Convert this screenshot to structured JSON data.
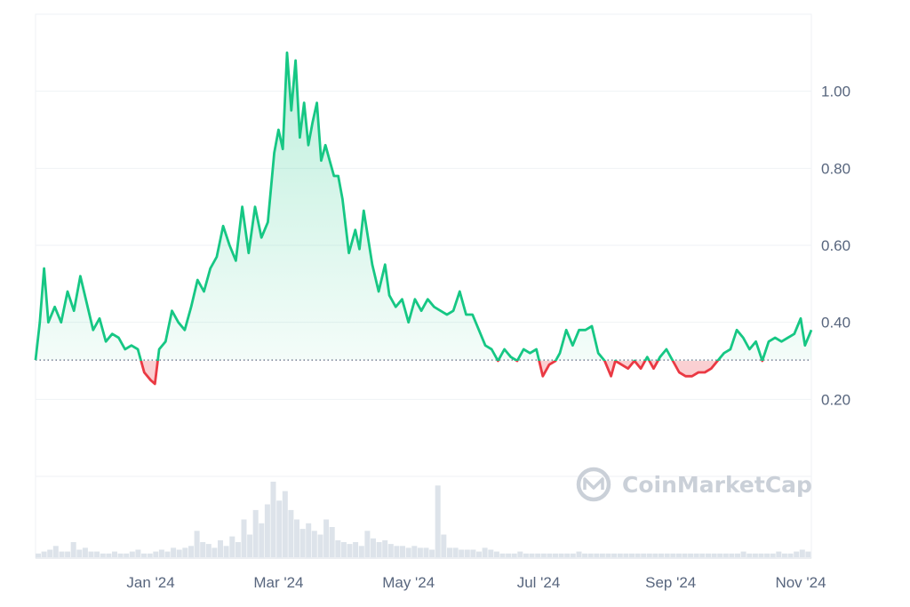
{
  "chart_data": {
    "type": "area",
    "xlabel": "",
    "ylabel": "",
    "x_ticks": [
      {
        "label": "Jan '24",
        "date": "2024-01-01"
      },
      {
        "label": "Mar '24",
        "date": "2024-03-01"
      },
      {
        "label": "May '24",
        "date": "2024-05-01"
      },
      {
        "label": "Jul '24",
        "date": "2024-07-01"
      },
      {
        "label": "Sep '24",
        "date": "2024-09-01"
      },
      {
        "label": "Nov '24",
        "date": "2024-11-01"
      }
    ],
    "y_ticks": [
      {
        "label": "0.20",
        "value": 0.2
      },
      {
        "label": "0.40",
        "value": 0.4
      },
      {
        "label": "0.60",
        "value": 0.6
      },
      {
        "label": "0.80",
        "value": 0.8
      },
      {
        "label": "1.00",
        "value": 1.0
      }
    ],
    "xlim": [
      "2023-11-08",
      "2024-11-06"
    ],
    "ylim": [
      0.0,
      1.2
    ],
    "baseline": 0.302,
    "grid": true,
    "colors": {
      "above": "#16c784",
      "below": "#ea3943",
      "grid": "#eff2f5",
      "volume": "#dde3ea"
    },
    "series": [
      {
        "x": [
          "2023-11-08",
          "2023-11-10",
          "2023-11-12",
          "2023-11-14",
          "2023-11-17",
          "2023-11-20",
          "2023-11-23",
          "2023-11-26",
          "2023-11-29",
          "2023-12-02",
          "2023-12-05",
          "2023-12-08",
          "2023-12-11",
          "2023-12-14",
          "2023-12-17",
          "2023-12-20",
          "2023-12-23",
          "2023-12-26",
          "2023-12-29",
          "2024-01-01",
          "2024-01-03",
          "2024-01-05",
          "2024-01-08",
          "2024-01-11",
          "2024-01-14",
          "2024-01-17",
          "2024-01-20",
          "2024-01-23",
          "2024-01-26",
          "2024-01-29",
          "2024-02-01",
          "2024-02-04",
          "2024-02-07",
          "2024-02-10",
          "2024-02-13",
          "2024-02-16",
          "2024-02-19",
          "2024-02-22",
          "2024-02-25",
          "2024-02-28",
          "2024-03-01",
          "2024-03-03",
          "2024-03-05",
          "2024-03-07",
          "2024-03-09",
          "2024-03-11",
          "2024-03-13",
          "2024-03-15",
          "2024-03-17",
          "2024-03-19",
          "2024-03-21",
          "2024-03-23",
          "2024-03-25",
          "2024-03-27",
          "2024-03-29",
          "2024-03-31",
          "2024-04-03",
          "2024-04-06",
          "2024-04-08",
          "2024-04-10",
          "2024-04-12",
          "2024-04-14",
          "2024-04-17",
          "2024-04-20",
          "2024-04-22",
          "2024-04-25",
          "2024-04-28",
          "2024-05-01",
          "2024-05-04",
          "2024-05-07",
          "2024-05-10",
          "2024-05-13",
          "2024-05-16",
          "2024-05-19",
          "2024-05-22",
          "2024-05-25",
          "2024-05-28",
          "2024-05-31",
          "2024-06-03",
          "2024-06-06",
          "2024-06-09",
          "2024-06-12",
          "2024-06-15",
          "2024-06-18",
          "2024-06-21",
          "2024-06-24",
          "2024-06-27",
          "2024-06-30",
          "2024-07-03",
          "2024-07-06",
          "2024-07-09",
          "2024-07-11",
          "2024-07-14",
          "2024-07-17",
          "2024-07-20",
          "2024-07-23",
          "2024-07-26",
          "2024-07-29",
          "2024-08-01",
          "2024-08-04",
          "2024-08-06",
          "2024-08-09",
          "2024-08-12",
          "2024-08-15",
          "2024-08-18",
          "2024-08-21",
          "2024-08-24",
          "2024-08-27",
          "2024-08-30",
          "2024-09-02",
          "2024-09-05",
          "2024-09-08",
          "2024-09-11",
          "2024-09-14",
          "2024-09-17",
          "2024-09-20",
          "2024-09-23",
          "2024-09-26",
          "2024-09-29",
          "2024-10-02",
          "2024-10-05",
          "2024-10-08",
          "2024-10-11",
          "2024-10-14",
          "2024-10-17",
          "2024-10-20",
          "2024-10-23",
          "2024-10-26",
          "2024-10-29",
          "2024-11-01",
          "2024-11-03",
          "2024-11-06"
        ],
        "y": [
          0.302,
          0.4,
          0.54,
          0.4,
          0.44,
          0.4,
          0.48,
          0.43,
          0.52,
          0.45,
          0.38,
          0.41,
          0.35,
          0.37,
          0.36,
          0.33,
          0.34,
          0.33,
          0.27,
          0.25,
          0.24,
          0.33,
          0.35,
          0.43,
          0.4,
          0.38,
          0.44,
          0.51,
          0.48,
          0.54,
          0.57,
          0.65,
          0.6,
          0.56,
          0.7,
          0.58,
          0.7,
          0.62,
          0.66,
          0.84,
          0.9,
          0.85,
          1.1,
          0.95,
          1.08,
          0.88,
          0.97,
          0.86,
          0.92,
          0.97,
          0.82,
          0.86,
          0.82,
          0.78,
          0.78,
          0.72,
          0.58,
          0.64,
          0.59,
          0.69,
          0.62,
          0.55,
          0.48,
          0.55,
          0.47,
          0.44,
          0.46,
          0.4,
          0.46,
          0.43,
          0.46,
          0.44,
          0.43,
          0.42,
          0.43,
          0.48,
          0.42,
          0.42,
          0.38,
          0.34,
          0.33,
          0.3,
          0.33,
          0.31,
          0.3,
          0.33,
          0.32,
          0.33,
          0.26,
          0.29,
          0.3,
          0.32,
          0.38,
          0.34,
          0.38,
          0.38,
          0.39,
          0.32,
          0.3,
          0.26,
          0.3,
          0.29,
          0.28,
          0.3,
          0.28,
          0.31,
          0.28,
          0.31,
          0.33,
          0.3,
          0.27,
          0.26,
          0.26,
          0.27,
          0.27,
          0.28,
          0.3,
          0.32,
          0.33,
          0.38,
          0.36,
          0.33,
          0.35,
          0.3,
          0.35,
          0.36,
          0.35,
          0.36,
          0.37,
          0.41,
          0.34,
          0.38
        ]
      }
    ],
    "volume": [
      2,
      3,
      4,
      6,
      3,
      3,
      8,
      4,
      5,
      3,
      3,
      2,
      2,
      3,
      2,
      2,
      3,
      4,
      2,
      2,
      3,
      4,
      3,
      5,
      4,
      5,
      6,
      14,
      8,
      7,
      5,
      9,
      6,
      11,
      8,
      20,
      12,
      25,
      18,
      28,
      40,
      30,
      35,
      25,
      20,
      15,
      18,
      14,
      12,
      20,
      16,
      9,
      8,
      7,
      8,
      6,
      14,
      10,
      8,
      9,
      7,
      6,
      6,
      5,
      6,
      5,
      5,
      4,
      38,
      12,
      5,
      5,
      4,
      4,
      4,
      3,
      5,
      4,
      3,
      2,
      2,
      2,
      3,
      2,
      2,
      2,
      2,
      2,
      2,
      2,
      2,
      2,
      3,
      2,
      2,
      2,
      2,
      2,
      2,
      2,
      2,
      2,
      2,
      2,
      2,
      2,
      2,
      2,
      2,
      2,
      2,
      2,
      2,
      2,
      2,
      2,
      2,
      2,
      2,
      2,
      3,
      2,
      2,
      2,
      2,
      2,
      3,
      2,
      2,
      3,
      4,
      3
    ],
    "watermark": "CoinMarketCap"
  }
}
